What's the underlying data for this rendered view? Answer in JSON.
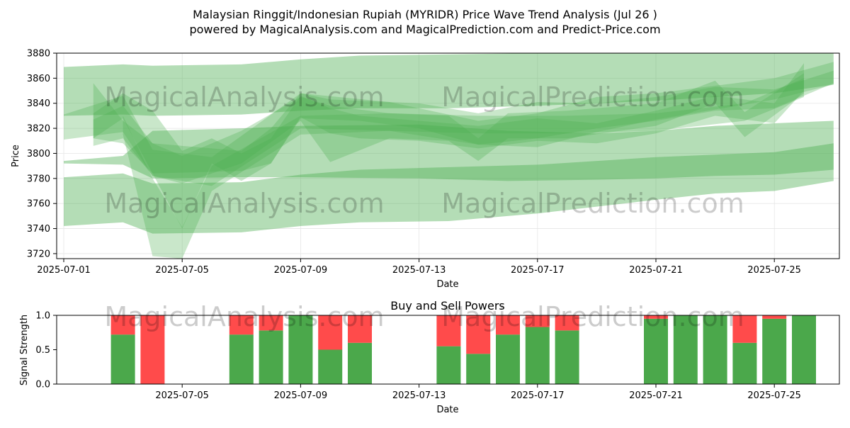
{
  "title_line1": "Malaysian Ringgit/Indonesian Rupiah (MYRIDR) Price Wave Trend Analysis (Jul 26 )",
  "title_line2": "powered by MagicalAnalysis.com and MagicalPrediction.com and Predict-Price.com",
  "watermarks": [
    "MagicalAnalysis.com",
    "MagicalPrediction.com"
  ],
  "colors": {
    "band": "#4caf50",
    "buy": "#4ba84b",
    "sell": "#ff4b4b",
    "grid": "#e6e6e6"
  },
  "chart_data": [
    {
      "type": "area",
      "title": "",
      "xlabel": "Date",
      "ylabel": "Price",
      "xlim": [
        "2025-07-01",
        "2025-07-27"
      ],
      "ylim": [
        3716,
        3880
      ],
      "yticks": [
        3720,
        3740,
        3760,
        3780,
        3800,
        3820,
        3840,
        3860,
        3880
      ],
      "xticks": [
        "2025-07-01",
        "2025-07-05",
        "2025-07-09",
        "2025-07-13",
        "2025-07-17",
        "2025-07-21",
        "2025-07-25"
      ],
      "grid": true,
      "bands": [
        {
          "x": [
            "2025-07-01",
            "2025-07-03",
            "2025-07-04",
            "2025-07-07",
            "2025-07-09",
            "2025-07-11",
            "2025-07-14",
            "2025-07-17",
            "2025-07-21",
            "2025-07-25",
            "2025-07-27"
          ],
          "upper": [
            3869,
            3871,
            3870,
            3871,
            3875,
            3878,
            3879,
            3880,
            3880,
            3880,
            3880
          ],
          "lower": [
            3830,
            3831,
            3830,
            3831,
            3834,
            3836,
            3836,
            3838,
            3842,
            3848,
            3855
          ]
        },
        {
          "x": [
            "2025-07-01",
            "2025-07-03",
            "2025-07-04",
            "2025-07-07",
            "2025-07-09",
            "2025-07-11",
            "2025-07-14",
            "2025-07-17",
            "2025-07-21",
            "2025-07-23",
            "2025-07-25",
            "2025-07-27"
          ],
          "upper": [
            3781,
            3784,
            3776,
            3777,
            3783,
            3787,
            3789,
            3791,
            3797,
            3799,
            3801,
            3808
          ],
          "lower": [
            3742,
            3745,
            3736,
            3737,
            3742,
            3745,
            3746,
            3752,
            3763,
            3768,
            3770,
            3778
          ]
        },
        {
          "x": [
            "2025-07-01",
            "2025-07-03",
            "2025-07-04",
            "2025-07-07",
            "2025-07-09",
            "2025-07-13",
            "2025-07-16",
            "2025-07-19",
            "2025-07-21",
            "2025-07-23",
            "2025-07-25",
            "2025-07-27"
          ],
          "upper": [
            3794,
            3798,
            3818,
            3820,
            3822,
            3823,
            3818,
            3816,
            3818,
            3822,
            3824,
            3826
          ],
          "lower": [
            3792,
            3791,
            3780,
            3781,
            3781,
            3780,
            3778,
            3779,
            3780,
            3782,
            3783,
            3787
          ]
        },
        {
          "x": [
            "2025-07-01",
            "2025-07-03",
            "2025-07-04",
            "2025-07-06",
            "2025-07-09",
            "2025-07-12",
            "2025-07-15",
            "2025-07-17",
            "2025-07-19",
            "2025-07-21",
            "2025-07-25",
            "2025-07-27"
          ],
          "upper": [
            3831,
            3846,
            3803,
            3797,
            3848,
            3841,
            3826,
            3832,
            3845,
            3848,
            3860,
            3873
          ],
          "lower": [
            3811,
            3817,
            3782,
            3774,
            3820,
            3818,
            3807,
            3805,
            3817,
            3827,
            3843,
            3855
          ]
        },
        {
          "x": [
            "2025-07-02",
            "2025-07-03",
            "2025-07-04",
            "2025-07-07",
            "2025-07-08",
            "2025-07-09",
            "2025-07-10",
            "2025-07-11",
            "2025-07-13",
            "2025-07-15",
            "2025-07-17",
            "2025-07-19",
            "2025-07-21",
            "2025-07-23",
            "2025-07-25",
            "2025-07-27"
          ],
          "upper": [
            3856,
            3826,
            3808,
            3802,
            3820,
            3848,
            3843,
            3842,
            3840,
            3832,
            3841,
            3840,
            3845,
            3853,
            3851,
            3866
          ],
          "lower": [
            3812,
            3808,
            3784,
            3786,
            3792,
            3828,
            3827,
            3826,
            3820,
            3807,
            3812,
            3820,
            3826,
            3834,
            3836,
            3856
          ]
        },
        {
          "x": [
            "2025-07-02",
            "2025-07-03",
            "2025-07-04",
            "2025-07-05",
            "2025-07-07",
            "2025-07-09",
            "2025-07-10",
            "2025-07-12",
            "2025-07-14",
            "2025-07-15",
            "2025-07-16",
            "2025-07-18",
            "2025-07-21",
            "2025-07-23",
            "2025-07-24",
            "2025-07-26"
          ],
          "upper": [
            3827,
            3838,
            3808,
            3798,
            3818,
            3845,
            3838,
            3832,
            3830,
            3812,
            3832,
            3834,
            3840,
            3858,
            3833,
            3864
          ],
          "lower": [
            3806,
            3812,
            3782,
            3776,
            3792,
            3826,
            3793,
            3812,
            3810,
            3794,
            3812,
            3812,
            3822,
            3840,
            3813,
            3848
          ]
        },
        {
          "x": [
            "2025-07-02",
            "2025-07-03",
            "2025-07-04",
            "2025-07-05",
            "2025-07-06",
            "2025-07-07",
            "2025-07-08",
            "2025-07-09",
            "2025-07-10",
            "2025-07-11",
            "2025-07-13",
            "2025-07-15",
            "2025-07-17",
            "2025-07-19",
            "2025-07-21",
            "2025-07-23",
            "2025-07-25",
            "2025-07-26"
          ],
          "upper": [
            3832,
            3848,
            3834,
            3802,
            3812,
            3800,
            3812,
            3846,
            3836,
            3830,
            3826,
            3822,
            3828,
            3824,
            3834,
            3846,
            3840,
            3872
          ],
          "lower": [
            3812,
            3828,
            3784,
            3740,
            3792,
            3778,
            3792,
            3829,
            3816,
            3812,
            3810,
            3804,
            3810,
            3808,
            3816,
            3830,
            3824,
            3850
          ]
        },
        {
          "x": [
            "2025-07-03",
            "2025-07-04",
            "2025-07-05",
            "2025-07-06",
            "2025-07-09",
            "2025-07-12",
            "2025-07-15",
            "2025-07-18",
            "2025-07-21",
            "2025-07-24",
            "2025-07-26"
          ],
          "upper": [
            3830,
            3780,
            3741,
            3790,
            3830,
            3832,
            3830,
            3830,
            3832,
            3840,
            3860
          ],
          "lower": [
            3815,
            3718,
            3716,
            3770,
            3815,
            3818,
            3816,
            3816,
            3818,
            3826,
            3845
          ]
        }
      ]
    },
    {
      "type": "bar",
      "title": "Buy and Sell Powers",
      "xlabel": "Date",
      "ylabel": "Signal Strength",
      "ylim": [
        0,
        1
      ],
      "yticks": [
        "0.0",
        "0.5",
        "1.0"
      ],
      "xticks": [
        "2025-07-05",
        "2025-07-09",
        "2025-07-13",
        "2025-07-17",
        "2025-07-21",
        "2025-07-25"
      ],
      "grid": false,
      "dates": [
        "2025-07-03",
        "2025-07-04",
        "2025-07-07",
        "2025-07-08",
        "2025-07-09",
        "2025-07-10",
        "2025-07-11",
        "2025-07-14",
        "2025-07-15",
        "2025-07-16",
        "2025-07-17",
        "2025-07-18",
        "2025-07-21",
        "2025-07-22",
        "2025-07-23",
        "2025-07-24",
        "2025-07-25",
        "2025-07-26"
      ],
      "series": [
        {
          "name": "Buy",
          "values": [
            0.72,
            0,
            0.72,
            0.78,
            1,
            0.5,
            0.6,
            0.55,
            0.44,
            0.72,
            0.83,
            0.78,
            0.95,
            1,
            1,
            0.6,
            0.95,
            1
          ]
        },
        {
          "name": "Sell",
          "values": [
            0.28,
            1,
            0.28,
            0.22,
            0,
            0.5,
            0.4,
            0.45,
            0.56,
            0.28,
            0.17,
            0.22,
            0.05,
            0,
            0,
            0.4,
            0.05,
            0
          ]
        }
      ]
    }
  ]
}
